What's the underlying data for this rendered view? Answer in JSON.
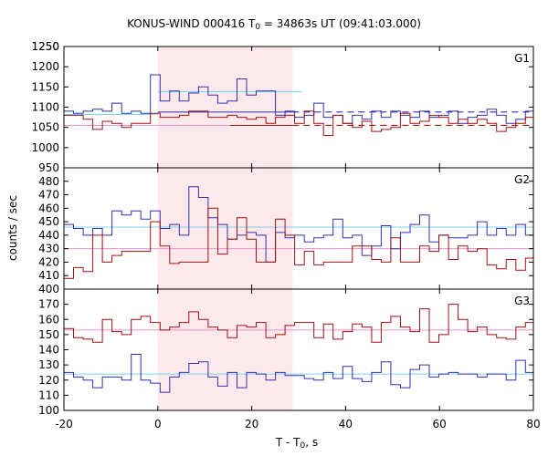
{
  "figure": {
    "title_prefix": "KONUS-WIND 000416 T",
    "title_sub": "0",
    "title_suffix": " = 34863s UT (09:41:03.000)",
    "ylabel": "counts / sec",
    "xlabel_prefix": "T - T",
    "xlabel_sub": "0",
    "xlabel_suffix": ", s"
  },
  "chart_data": {
    "type": "line",
    "x": {
      "lim": [
        -20,
        80
      ],
      "ticks": [
        -20,
        0,
        20,
        40,
        60,
        80
      ],
      "tick_labels": [
        "-20",
        "0",
        "20",
        "40",
        "60",
        "80"
      ],
      "step": 2.048,
      "bins": 49
    },
    "colors": {
      "blue": "#3030b0",
      "red": "#a01010",
      "cyan": "#80d0f0",
      "pink": "#f090d0",
      "shade": "#fde8ec"
    },
    "shaded_region": {
      "x0": 0,
      "x1": 28.7
    },
    "panels": [
      {
        "label": "G1",
        "ylim": [
          950,
          1250
        ],
        "yticks": [
          950,
          1000,
          1050,
          1100,
          1150,
          1200,
          1250
        ],
        "series": [
          {
            "color": "blue",
            "values": [
              1090,
              1085,
              1090,
              1095,
              1090,
              1110,
              1085,
              1090,
              1085,
              1180,
              1115,
              1140,
              1115,
              1135,
              1150,
              1130,
              1110,
              1115,
              1170,
              1130,
              1140,
              1140,
              1080,
              1090,
              1075,
              1080,
              1110,
              1075,
              1080,
              1060,
              1080,
              1070,
              1090,
              1075,
              1090,
              1080,
              1075,
              1090,
              1075,
              1080,
              1090,
              1060,
              1075,
              1080,
              1095,
              1080,
              1060,
              1070,
              1090
            ]
          },
          {
            "color": "red",
            "values": [
              1080,
              1080,
              1070,
              1045,
              1065,
              1060,
              1050,
              1060,
              1060,
              1085,
              1075,
              1075,
              1080,
              1090,
              1090,
              1075,
              1075,
              1080,
              1075,
              1070,
              1075,
              1060,
              1075,
              1080,
              1060,
              1090,
              1060,
              1030,
              1080,
              1060,
              1050,
              1065,
              1040,
              1045,
              1050,
              1085,
              1060,
              1065,
              1080,
              1075,
              1060,
              1070,
              1060,
              1070,
              1060,
              1040,
              1050,
              1060,
              1075
            ]
          }
        ],
        "bg_lines": [
          {
            "color": "blue",
            "y": 1088,
            "dash": [
              0,
              28.7
            ],
            "dashed": [
              28.7,
              80
            ]
          },
          {
            "color": "red",
            "y": 1055,
            "dash": [
              15.4,
              28.7
            ],
            "dashed": [
              28.7,
              80
            ]
          },
          {
            "color": "cyan",
            "y": 1082,
            "span": [
              -20,
              0
            ]
          },
          {
            "color": "cyan",
            "y": 1138,
            "span": [
              0,
              30.7
            ]
          },
          {
            "color": "pink",
            "y": 1055,
            "span": [
              -20,
              15.4
            ]
          }
        ]
      },
      {
        "label": "G2",
        "ylim": [
          400,
          490
        ],
        "yticks": [
          400,
          410,
          420,
          430,
          440,
          450,
          460,
          470,
          480
        ],
        "series": [
          {
            "color": "blue",
            "values": [
              448,
              445,
              440,
              445,
              440,
              458,
              455,
              458,
              452,
              458,
              445,
              448,
              440,
              476,
              468,
              453,
              448,
              437,
              440,
              442,
              440,
              420,
              442,
              438,
              440,
              435,
              438,
              440,
              452,
              438,
              440,
              425,
              432,
              447,
              430,
              442,
              448,
              455,
              435,
              440,
              438,
              438,
              440,
              450,
              440,
              445,
              440,
              448,
              440
            ]
          },
          {
            "color": "red",
            "values": [
              408,
              416,
              413,
              440,
              420,
              425,
              428,
              428,
              428,
              450,
              432,
              419,
              420,
              420,
              420,
              460,
              426,
              437,
              453,
              437,
              420,
              420,
              452,
              440,
              418,
              428,
              418,
              420,
              420,
              420,
              432,
              432,
              422,
              420,
              438,
              420,
              420,
              432,
              428,
              440,
              422,
              432,
              428,
              430,
              418,
              415,
              422,
              414,
              423
            ]
          }
        ],
        "bg_lines": [
          {
            "color": "cyan",
            "y": 446,
            "span": [
              -20,
              80
            ]
          },
          {
            "color": "pink",
            "y": 430,
            "span": [
              -20,
              80
            ]
          }
        ]
      },
      {
        "label": "G3",
        "ylim": [
          100,
          180
        ],
        "yticks": [
          100,
          110,
          120,
          130,
          140,
          150,
          160,
          170
        ],
        "series": [
          {
            "color": "blue",
            "values": [
              125,
              122,
              120,
              115,
              122,
              122,
              120,
              137,
              120,
              118,
              112,
              122,
              125,
              131,
              132,
              122,
              116,
              125,
              115,
              125,
              124,
              120,
              125,
              123,
              123,
              121,
              120,
              125,
              121,
              129,
              121,
              119,
              125,
              132,
              117,
              115,
              127,
              130,
              122,
              124,
              125,
              124,
              124,
              122,
              124,
              124,
              120,
              133,
              125
            ]
          },
          {
            "color": "red",
            "values": [
              154,
              148,
              147,
              145,
              160,
              152,
              150,
              160,
              162,
              158,
              153,
              155,
              158,
              165,
              160,
              155,
              153,
              148,
              156,
              155,
              158,
              148,
              150,
              156,
              158,
              158,
              148,
              157,
              147,
              152,
              157,
              155,
              145,
              158,
              162,
              155,
              152,
              167,
              145,
              150,
              170,
              160,
              152,
              155,
              150,
              148,
              147,
              155,
              158
            ]
          }
        ],
        "bg_lines": [
          {
            "color": "cyan",
            "y": 124,
            "span": [
              -20,
              80
            ]
          },
          {
            "color": "pink",
            "y": 153,
            "span": [
              -20,
              80
            ]
          }
        ]
      }
    ]
  }
}
